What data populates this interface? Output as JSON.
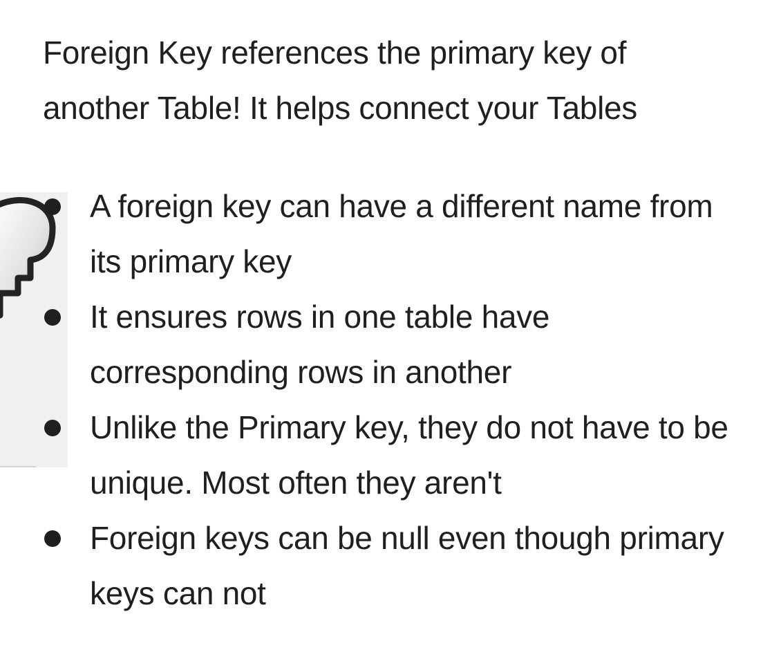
{
  "intro": "Foreign Key references the primary key of another Table! It helps connect your Tables",
  "points": [
    "A foreign key can have a different name from its primary key",
    "It ensures rows in one table have corresponding rows in another",
    "Unlike the Primary key, they do not have to be unique. Most often they aren't",
    "Foreign keys can be null even though primary keys can not"
  ],
  "icons": {
    "key_art": "key-icon"
  }
}
